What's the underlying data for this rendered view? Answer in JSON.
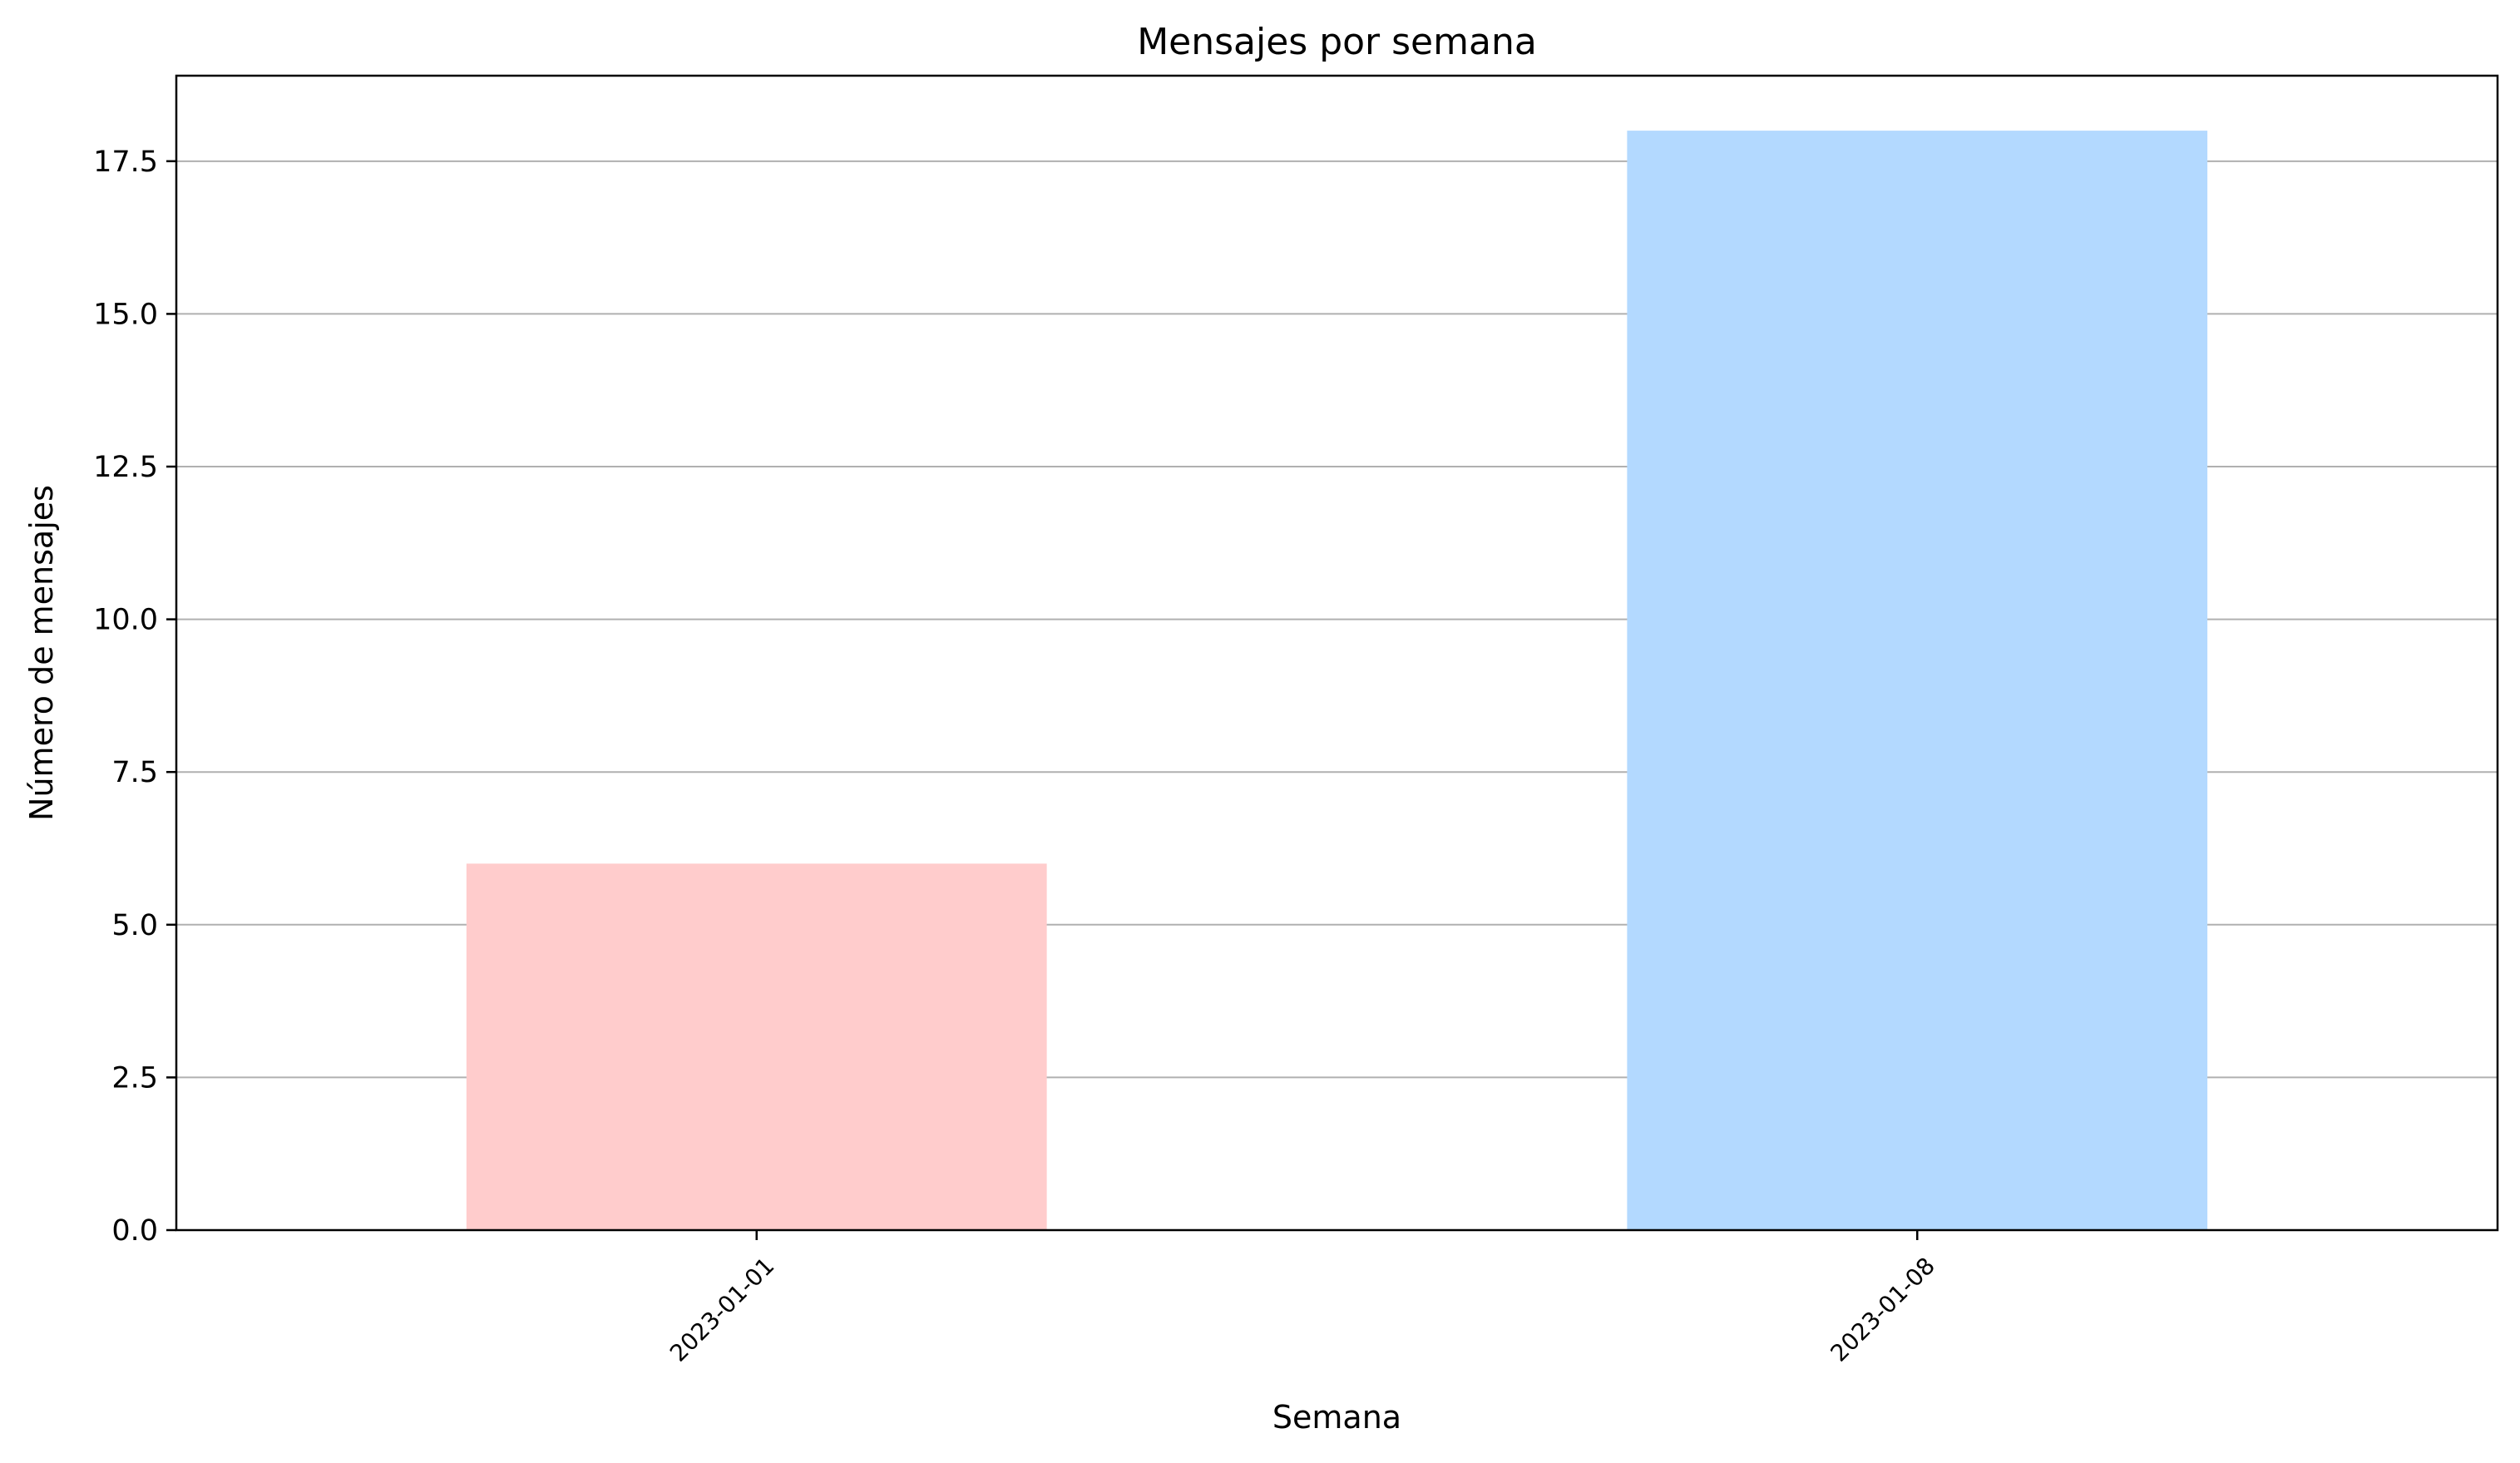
{
  "chart_data": {
    "type": "bar",
    "title": "Mensajes por semana",
    "xlabel": "Semana",
    "ylabel": "Número de mensajes",
    "categories": [
      "2023-01-01",
      "2023-01-08"
    ],
    "values": [
      6,
      18
    ],
    "bar_colors": [
      "#ffcccc",
      "#b3d9ff"
    ],
    "ylim": [
      0,
      18.9
    ],
    "yticks": [
      0.0,
      2.5,
      5.0,
      7.5,
      10.0,
      12.5,
      15.0,
      17.5
    ],
    "ytick_labels": [
      "0.0",
      "2.5",
      "5.0",
      "7.5",
      "10.0",
      "12.5",
      "15.0",
      "17.5"
    ],
    "xtick_rotation_deg": 45,
    "grid": "y-axis only",
    "legend": "none",
    "colors": {
      "grid": "#b0b0b0",
      "axes": "#000000",
      "background": "#ffffff"
    }
  }
}
